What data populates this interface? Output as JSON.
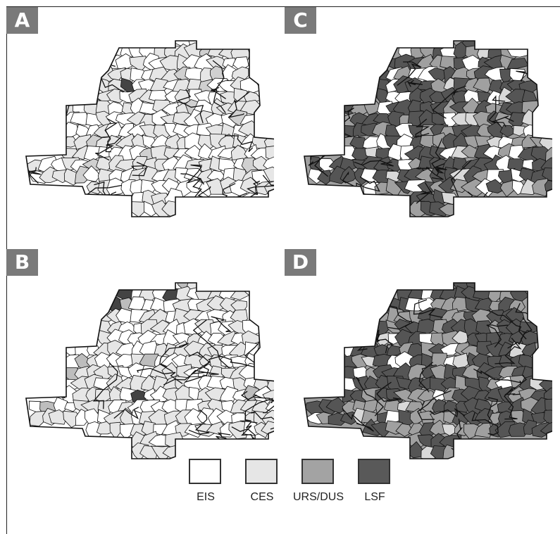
{
  "panels": [
    {
      "label": "A",
      "scheme": [
        "#ffffff",
        "#e6e6e6",
        "#d0d0d0",
        "#444444"
      ],
      "weights": [
        0.45,
        0.48,
        0.05,
        0.02
      ]
    },
    {
      "label": "B",
      "scheme": [
        "#ffffff",
        "#e6e6e6",
        "#bdbdbd",
        "#444444"
      ],
      "weights": [
        0.5,
        0.45,
        0.04,
        0.01
      ]
    },
    {
      "label": "C",
      "scheme": [
        "#ffffff",
        "#d9d9d9",
        "#a0a0a0",
        "#555555"
      ],
      "weights": [
        0.12,
        0.05,
        0.28,
        0.55
      ]
    },
    {
      "label": "D",
      "scheme": [
        "#ffffff",
        "#d9d9d9",
        "#a0a0a0",
        "#555555"
      ],
      "weights": [
        0.08,
        0.04,
        0.28,
        0.6
      ]
    }
  ],
  "legend": [
    {
      "label": "EIS",
      "color": "#ffffff"
    },
    {
      "label": "CES",
      "color": "#e6e6e6"
    },
    {
      "label": "URS/DUS",
      "color": "#a3a3a3"
    },
    {
      "label": "LSF",
      "color": "#595959"
    }
  ]
}
